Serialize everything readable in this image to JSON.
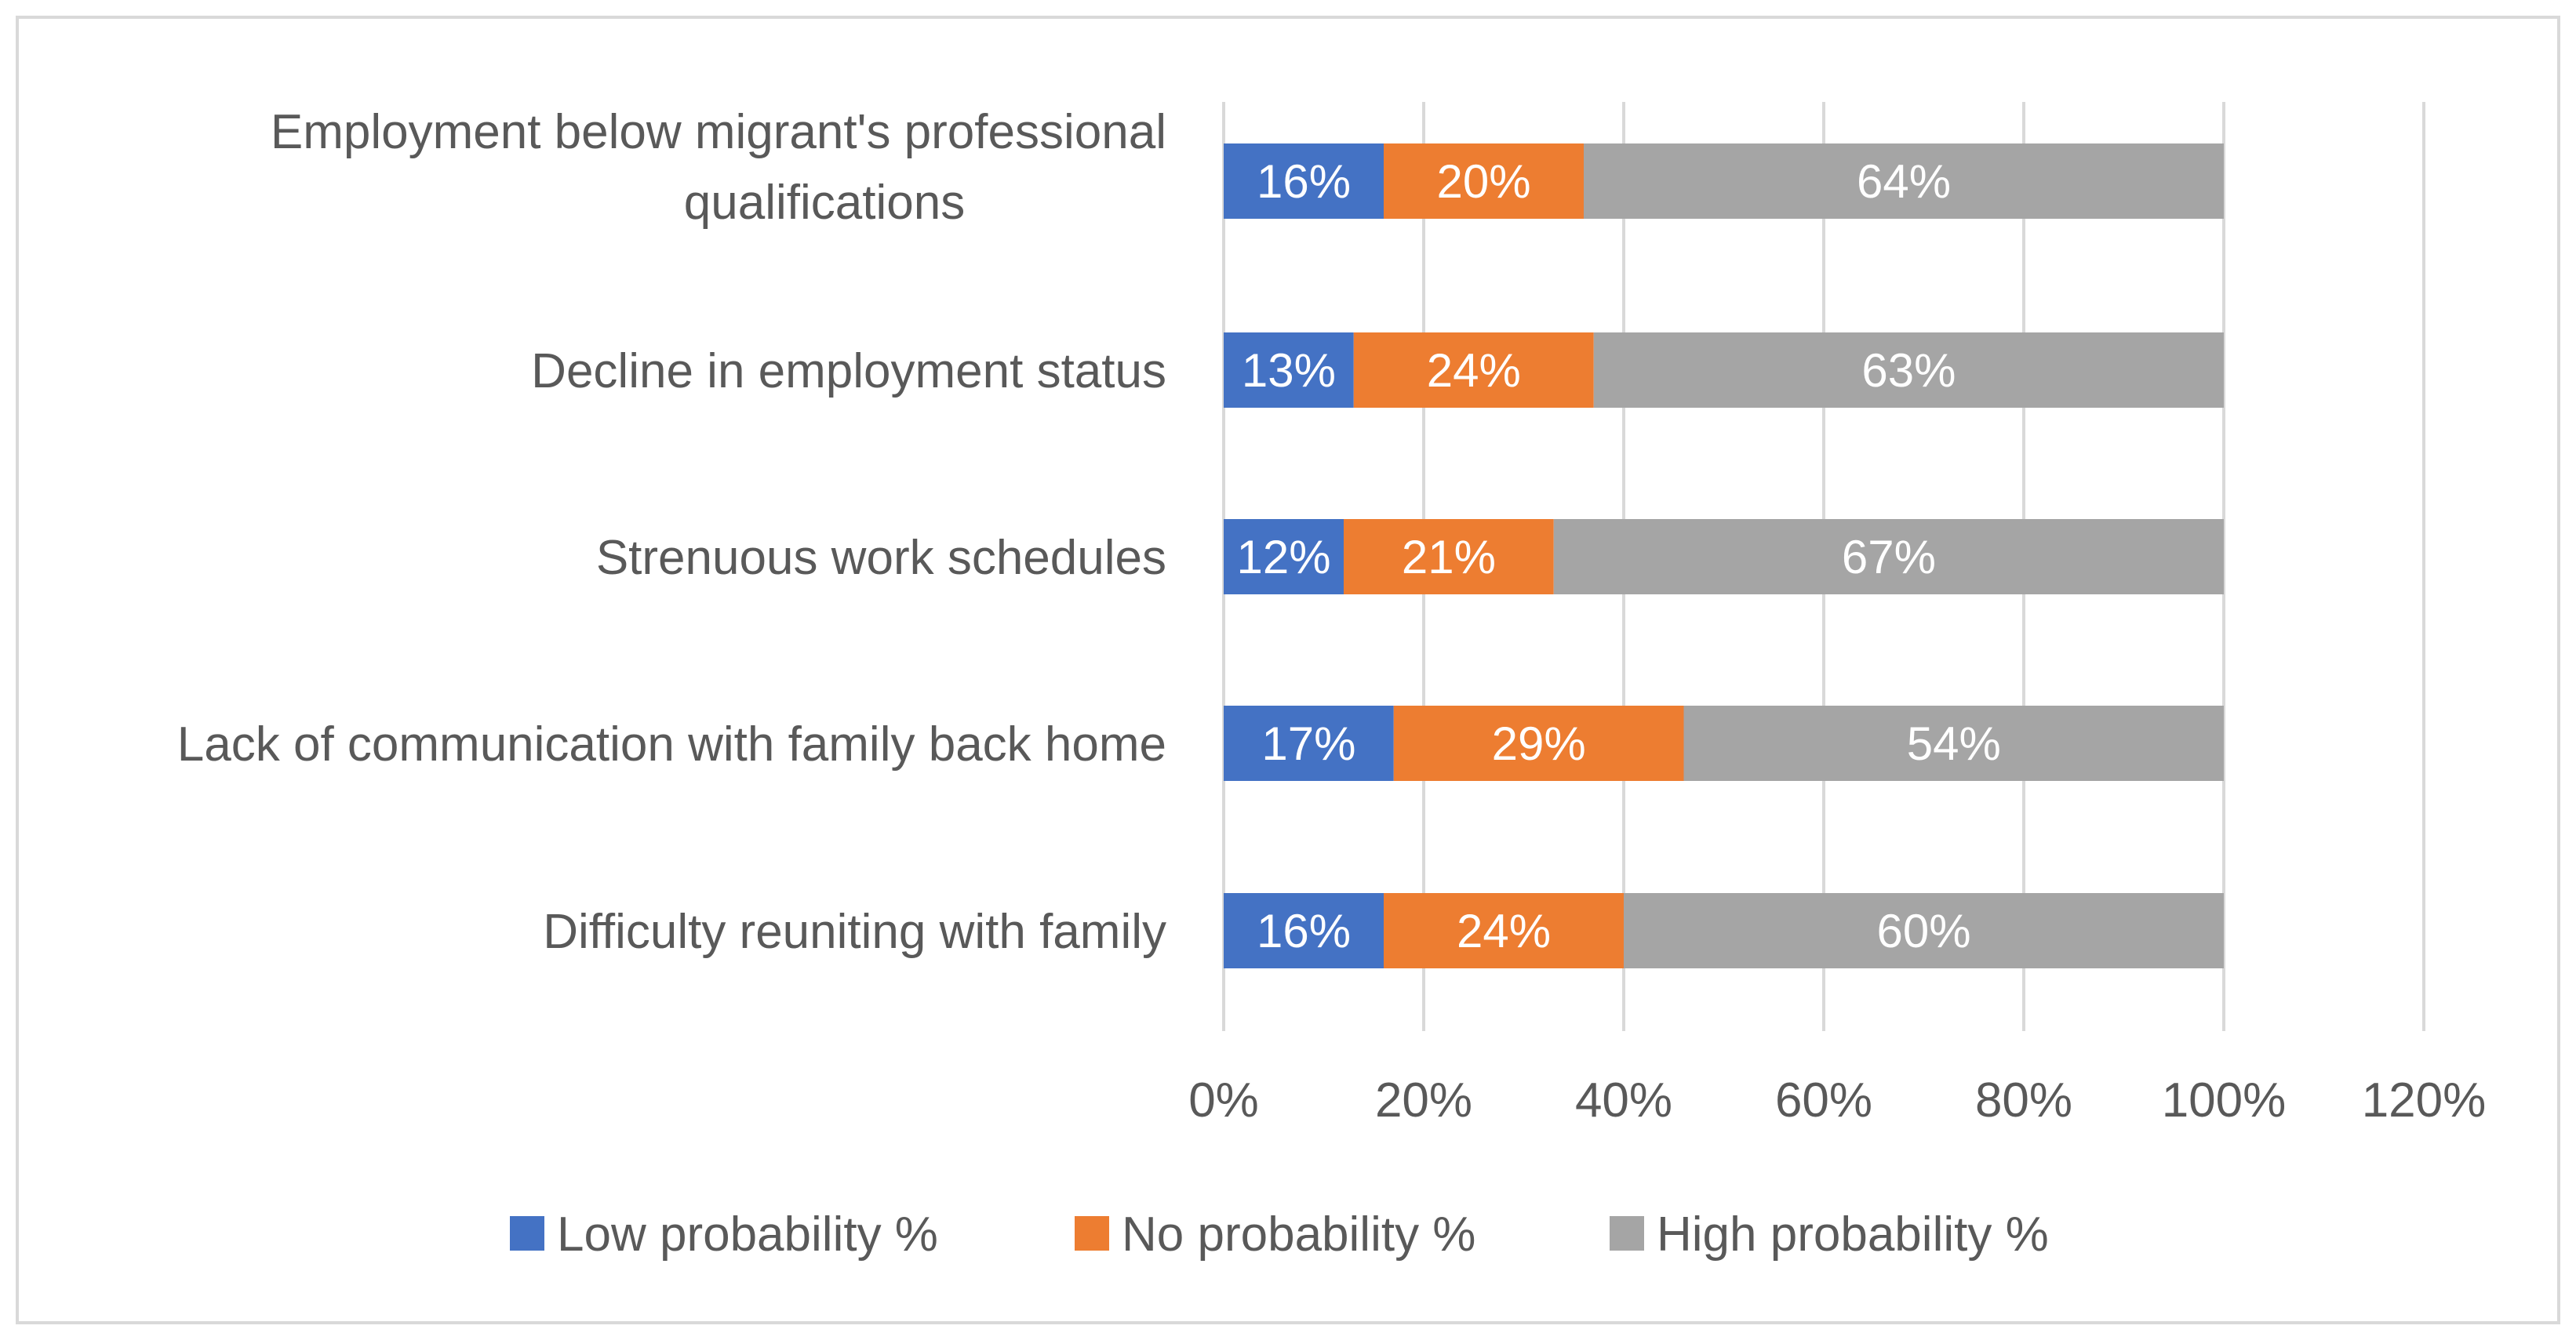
{
  "chart_data": {
    "type": "bar",
    "orientation": "horizontal",
    "stacked": true,
    "title": "",
    "xlabel": "",
    "ylabel": "",
    "categories": [
      "Employment below migrant's professional qualifications",
      "Decline in employment status",
      "Strenuous work schedules",
      "Lack of communication with family back home",
      "Difficulty reuniting with family"
    ],
    "category_lines": [
      [
        "Employment below migrant's professional",
        "qualifications"
      ],
      [
        "Decline in employment status"
      ],
      [
        "Strenuous work schedules"
      ],
      [
        "Lack of communication with family back home"
      ],
      [
        "Difficulty reuniting with family"
      ]
    ],
    "series": [
      {
        "name": "Low probability %",
        "color": "#4472C4",
        "values": [
          16,
          13,
          12,
          17,
          16
        ],
        "labels": [
          "16%",
          "13%",
          "12%",
          "17%",
          "16%"
        ]
      },
      {
        "name": "No probability %",
        "color": "#ED7D31",
        "values": [
          20,
          24,
          21,
          29,
          24
        ],
        "labels": [
          "20%",
          "24%",
          "21%",
          "29%",
          "24%"
        ]
      },
      {
        "name": "High probability %",
        "color": "#A5A5A5",
        "values": [
          64,
          63,
          67,
          54,
          60
        ],
        "labels": [
          "64%",
          "63%",
          "67%",
          "54%",
          "60%"
        ]
      }
    ],
    "xlim": [
      0,
      120
    ],
    "xticks": [
      0,
      20,
      40,
      60,
      80,
      100,
      120
    ],
    "xtick_labels": [
      "0%",
      "20%",
      "40%",
      "60%",
      "80%",
      "100%",
      "120%"
    ],
    "grid": true,
    "gridline_color": "#D9D9D9",
    "border_color": "#D9D9D9",
    "legend_position": "bottom"
  }
}
